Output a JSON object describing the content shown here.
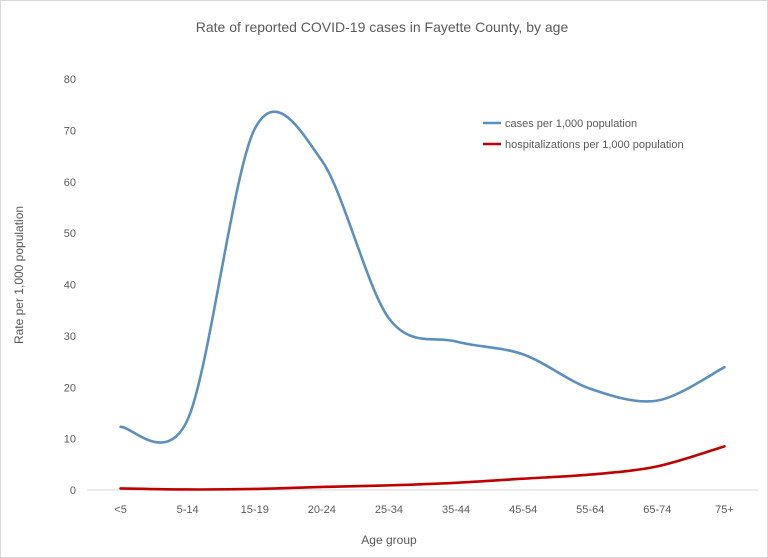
{
  "chart_data": {
    "type": "line",
    "title": "Rate of reported COVID-19 cases in Fayette County, by age",
    "xlabel": "Age group",
    "ylabel": "Rate per 1,000 population",
    "categories": [
      "<5",
      "5-14",
      "15-19",
      "20-24",
      "25-34",
      "35-44",
      "45-54",
      "55-64",
      "65-74",
      "75+"
    ],
    "ylim": [
      0,
      80
    ],
    "yticks": [
      0,
      10,
      20,
      30,
      40,
      50,
      60,
      70,
      80
    ],
    "grid": false,
    "legend_position": "top-right",
    "series": [
      {
        "name": "cases per 1,000 population",
        "color": "#5b8fbf",
        "values": [
          12.3,
          13.7,
          70.3,
          64.1,
          33.4,
          28.9,
          26.4,
          19.7,
          17.4,
          23.9
        ]
      },
      {
        "name": "hospitalizations per 1,000 population",
        "color": "#c00000",
        "values": [
          0.3,
          0.1,
          0.2,
          0.6,
          0.9,
          1.4,
          2.2,
          3.0,
          4.6,
          8.5
        ]
      }
    ]
  }
}
